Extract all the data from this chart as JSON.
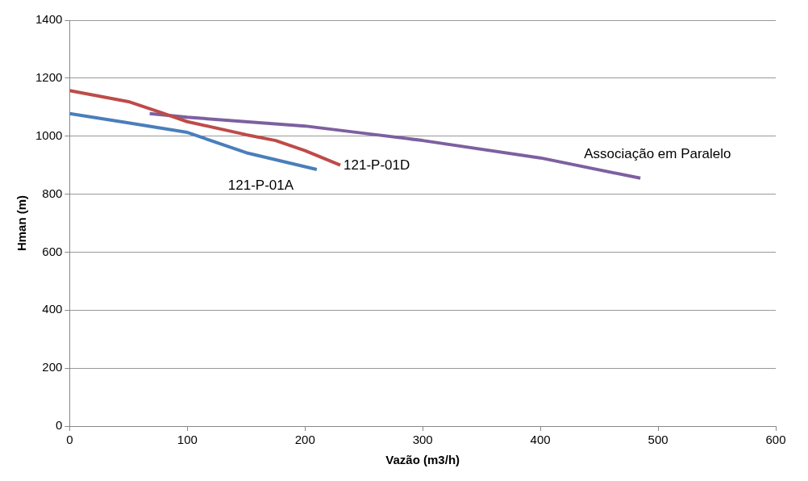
{
  "chart_data": {
    "type": "line",
    "xlabel": "Vazão (m3/h)",
    "ylabel": "Hman (m)",
    "xlim": [
      0,
      600
    ],
    "xticks": [
      0,
      100,
      200,
      300,
      400,
      500,
      600
    ],
    "ylim": [
      0,
      1400
    ],
    "yticks": [
      0,
      200,
      400,
      600,
      800,
      1000,
      1200,
      1400
    ],
    "grid": "y",
    "legend": false,
    "marker": "none",
    "line_style": "solid",
    "series": [
      {
        "name": "121-P-01A",
        "color": "#4a7ebb",
        "x": [
          0,
          50,
          100,
          150,
          210
        ],
        "values": [
          1078,
          1046,
          1013,
          943,
          885
        ]
      },
      {
        "name": "121-P-01D",
        "color": "#be4b48",
        "x": [
          0,
          50,
          75,
          100,
          150,
          175,
          200,
          230
        ],
        "values": [
          1157,
          1119,
          1085,
          1050,
          1005,
          985,
          950,
          900
        ]
      },
      {
        "name": "Associação em Paralelo",
        "color": "#7d60a0",
        "x": [
          68,
          100,
          200,
          250,
          300,
          400,
          485
        ],
        "values": [
          1078,
          1065,
          1035,
          1010,
          985,
          925,
          855
        ]
      }
    ]
  }
}
